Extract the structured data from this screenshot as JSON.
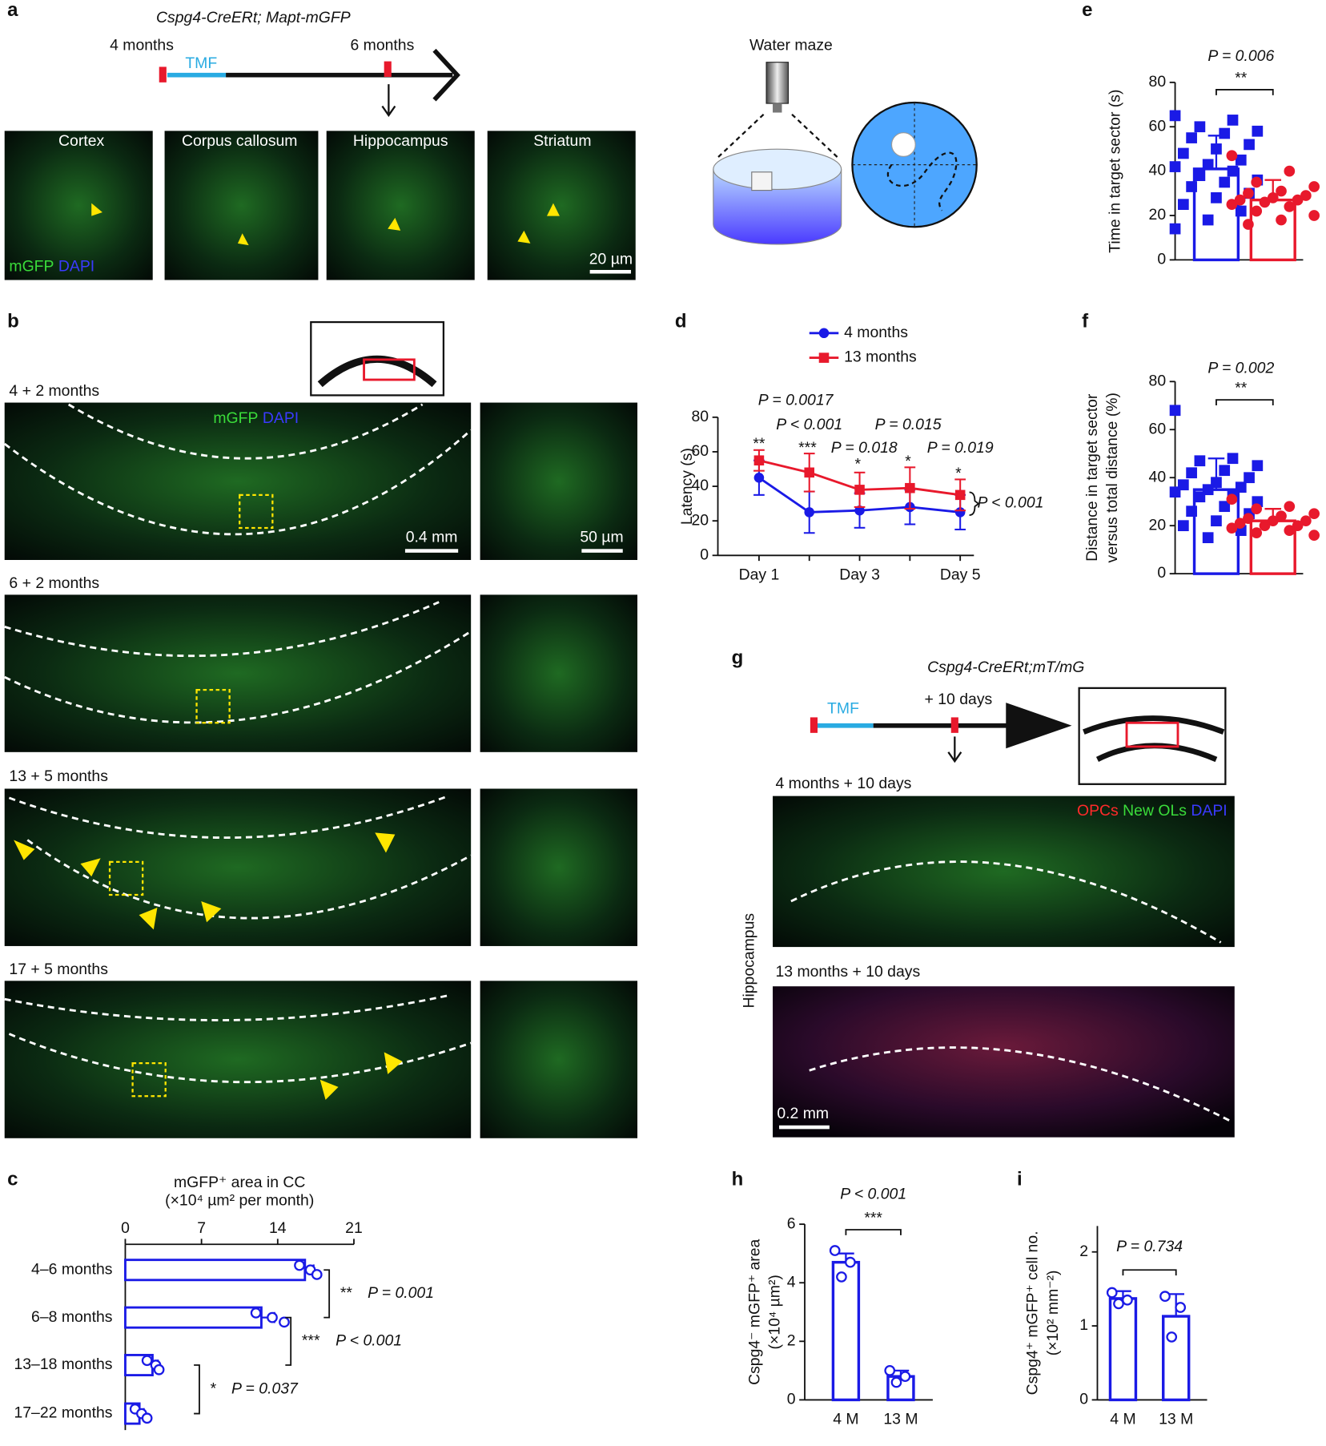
{
  "panels": {
    "a": {
      "letter": "a",
      "genotype": "Cspg4-CreERt; Mapt-mGFP",
      "timeline": [
        "4 months",
        "6 months"
      ],
      "treatment": "TMF",
      "regions": [
        "Cortex",
        "Corpus callosum",
        "Hippocampus",
        "Striatum"
      ],
      "stain": [
        "mGFP",
        "DAPI"
      ],
      "scale_bar": "20 µm",
      "water_maze": "Water maze"
    },
    "b": {
      "letter": "b",
      "rows": [
        "4 + 2 months",
        "6 + 2 months",
        "13 + 5 months",
        "17 + 5 months"
      ],
      "stain": [
        "mGFP",
        "DAPI"
      ],
      "scale_bars": [
        "0.4 mm",
        "50 µm"
      ]
    },
    "g": {
      "letter": "g",
      "genotype": "Cspg4-CreERt;mT/mG",
      "treatment": "TMF",
      "timepoint": "+ 10 days",
      "rows": [
        "4 months + 10 days",
        "13 months + 10 days"
      ],
      "stain": [
        "OPCs",
        "New OLs",
        "DAPI"
      ],
      "region": "Hippocampus",
      "scale_bar": "0.2 mm"
    }
  },
  "chart_data": [
    {
      "panel": "c",
      "type": "bar",
      "orientation": "horizontal",
      "title": [
        "mGFP⁺ area in CC",
        "(×10⁴ µm² per month)"
      ],
      "categories": [
        "4–6 months",
        "6–8 months",
        "13–18 months",
        "17–22 months"
      ],
      "values": [
        16.5,
        12.5,
        2.5,
        1.3
      ],
      "errors": [
        0.8,
        1.2,
        0.5,
        0.4
      ],
      "points": [
        [
          16,
          17,
          17.6
        ],
        [
          12,
          13.5,
          14.6
        ],
        [
          2,
          2.8,
          3.1
        ],
        [
          0.9,
          1.5,
          2
        ]
      ],
      "color": "#1a1ae6",
      "marker": "circle",
      "filled": false,
      "xlim": [
        0,
        21
      ],
      "xticks": [
        0,
        7,
        14,
        21
      ],
      "annotations": [
        {
          "stars": "**",
          "p": "P = 0.001"
        },
        {
          "stars": "***",
          "p": "P < 0.001"
        },
        {
          "stars": "*",
          "p": "P = 0.037"
        }
      ]
    },
    {
      "panel": "d",
      "type": "line",
      "categories": [
        "Day 1",
        null,
        "Day 3",
        null,
        "Day 5"
      ],
      "ylabel": "Latency (s)",
      "ylim": [
        0,
        80
      ],
      "yticks": [
        0,
        20,
        40,
        60,
        80
      ],
      "series": [
        {
          "name": "4 months",
          "color": "#1a1ae6",
          "marker": "circle",
          "values": [
            45,
            25,
            26,
            28,
            25
          ],
          "errors": [
            10,
            12,
            10,
            10,
            10
          ]
        },
        {
          "name": "13 months",
          "color": "#e8192c",
          "marker": "square",
          "values": [
            55,
            48,
            38,
            39,
            35
          ],
          "errors": [
            6,
            11,
            10,
            12,
            9
          ]
        }
      ],
      "stars": [
        "**",
        "***",
        "*",
        "*",
        "*"
      ],
      "p_values": [
        "P = 0.0017",
        "P < 0.001",
        "P = 0.018",
        "P = 0.015",
        "P = 0.019",
        "P < 0.001"
      ]
    },
    {
      "panel": "e",
      "type": "bar",
      "ylabel": [
        "Time in target sector (s)"
      ],
      "ylim": [
        0,
        80
      ],
      "yticks": [
        0,
        20,
        40,
        60,
        80
      ],
      "values": [
        41,
        27
      ],
      "errors": [
        15,
        9
      ],
      "colors": [
        "#1a1ae6",
        "#e8192c"
      ],
      "markers": [
        "square",
        "circle"
      ],
      "filled": true,
      "points": [
        [
          65,
          63,
          60,
          58,
          57,
          55,
          52,
          50,
          48,
          45,
          43,
          42,
          40,
          38,
          36,
          35,
          33,
          30,
          28,
          25,
          22,
          18,
          14
        ],
        [
          47,
          40,
          35,
          33,
          31,
          30,
          29,
          28,
          27,
          27,
          26,
          25,
          24,
          22,
          20,
          18,
          16
        ]
      ],
      "p_value": "P = 0.006",
      "stars": "**"
    },
    {
      "panel": "f",
      "type": "bar",
      "ylabel": [
        "Distance in target sector",
        "versus total distance (%)"
      ],
      "ylim": [
        0,
        80
      ],
      "yticks": [
        0,
        20,
        40,
        60,
        80
      ],
      "values": [
        35,
        22
      ],
      "errors": [
        13,
        5
      ],
      "colors": [
        "#1a1ae6",
        "#e8192c"
      ],
      "markers": [
        "square",
        "circle"
      ],
      "filled": true,
      "points": [
        [
          68,
          48,
          47,
          45,
          43,
          42,
          40,
          38,
          37,
          36,
          35,
          34,
          33,
          32,
          30,
          28,
          26,
          25,
          22,
          20,
          18,
          15
        ],
        [
          31,
          28,
          27,
          25,
          24,
          23,
          22,
          22,
          21,
          20,
          20,
          19,
          18,
          17,
          16
        ]
      ],
      "p_value": "P = 0.002",
      "stars": "**"
    },
    {
      "panel": "h",
      "type": "bar",
      "categories": [
        "4 M",
        "13 M"
      ],
      "ylabel": [
        "Cspg4⁻ mGFP⁺ area",
        "(×10⁴ µm²)"
      ],
      "ylim": [
        0,
        6
      ],
      "yticks": [
        0,
        2,
        4,
        6
      ],
      "values": [
        4.7,
        0.8
      ],
      "errors": [
        0.3,
        0.2
      ],
      "colors": [
        "#1a1ae6",
        "#1a1ae6"
      ],
      "markers": [
        "circle",
        "circle"
      ],
      "filled": false,
      "points": [
        [
          5.1,
          4.7,
          4.2
        ],
        [
          1,
          0.8,
          0.6
        ]
      ],
      "p_value": "P < 0.001",
      "stars": "***"
    },
    {
      "panel": "i",
      "type": "bar",
      "categories": [
        "4 M",
        "13 M"
      ],
      "ylabel": [
        "Cspg4⁺ mGFP⁺ cell no.",
        "(×10² mm⁻²)"
      ],
      "ylim": [
        0,
        2.35
      ],
      "yticks": [
        0,
        1,
        2
      ],
      "values": [
        1.37,
        1.13
      ],
      "errors": [
        0.1,
        0.3
      ],
      "colors": [
        "#1a1ae6",
        "#1a1ae6"
      ],
      "markers": [
        "circle",
        "circle"
      ],
      "filled": false,
      "points": [
        [
          1.45,
          1.35,
          1.3
        ],
        [
          1.4,
          1.25,
          0.85
        ]
      ],
      "p_value": "P = 0.734"
    }
  ]
}
